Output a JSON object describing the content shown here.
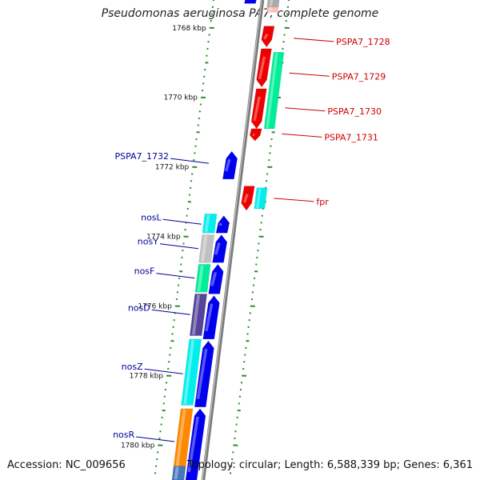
{
  "title": "Pseudomonas aeruginosa PA7, complete genome",
  "footer": {
    "accession": "Accession: NC_009656",
    "topology": "Topology: circular; Length: 6,588,339 bp; Genes: 6,361"
  },
  "colors": {
    "backbone": "#8a8a8a",
    "tick": "#2e8b2e",
    "forward_label": "#cc0000",
    "reverse_label": "#000099"
  },
  "genome_axis": {
    "unit": "kbp",
    "start_kbp": 1767.2,
    "end_kbp": 1781.0,
    "major_ticks": [
      {
        "kbp": 1768,
        "label": "1768 kbp"
      },
      {
        "kbp": 1770,
        "label": "1770 kbp"
      },
      {
        "kbp": 1772,
        "label": "1772 kbp"
      },
      {
        "kbp": 1774,
        "label": "1774 kbp"
      },
      {
        "kbp": 1776,
        "label": "1776 kbp"
      },
      {
        "kbp": 1778,
        "label": "1778 kbp"
      },
      {
        "kbp": 1780,
        "label": "1780 kbp"
      }
    ]
  },
  "forward_genes": [
    {
      "start": 1767.95,
      "end": 1768.55,
      "color": "#ee0000"
    },
    {
      "start": 1768.6,
      "end": 1769.7,
      "color": "#ee0000"
    },
    {
      "start": 1769.75,
      "end": 1770.9,
      "color": "#ee0000"
    },
    {
      "start": 1770.9,
      "end": 1771.25,
      "color": "#ee0000"
    },
    {
      "start": 1772.55,
      "end": 1773.25,
      "color": "#ee0000"
    }
  ],
  "forward_rna": [
    {
      "start": 1767.15,
      "end": 1767.55,
      "color": "#ffbbbb"
    },
    {
      "start": 1767.15,
      "end": 1767.4,
      "color": "#aaaaaa"
    }
  ],
  "forward_cds": [
    {
      "start": 1768.7,
      "end": 1770.9,
      "color": "#00ee99"
    },
    {
      "start": 1772.6,
      "end": 1773.2,
      "color": "#00eeee"
    }
  ],
  "reverse_genes": [
    {
      "start": 1767.0,
      "end": 1767.3,
      "color": "#0000ee"
    },
    {
      "start": 1771.55,
      "end": 1772.35,
      "color": "#0000ee"
    },
    {
      "start": 1773.4,
      "end": 1773.9,
      "color": "#0000ee"
    },
    {
      "start": 1773.95,
      "end": 1774.75,
      "color": "#0000ee"
    },
    {
      "start": 1774.8,
      "end": 1775.65,
      "color": "#0000ee"
    },
    {
      "start": 1775.7,
      "end": 1776.95,
      "color": "#0000ee"
    },
    {
      "start": 1777.0,
      "end": 1778.9,
      "color": "#0000ee"
    },
    {
      "start": 1778.95,
      "end": 1781.0,
      "color": "#0000ee"
    }
  ],
  "reverse_cds": [
    {
      "start": 1773.35,
      "end": 1773.9,
      "color": "#00eeee"
    },
    {
      "start": 1773.95,
      "end": 1774.75,
      "color": "#c0c0c0"
    },
    {
      "start": 1774.8,
      "end": 1775.6,
      "color": "#00ee99"
    },
    {
      "start": 1775.65,
      "end": 1776.85,
      "color": "#554499"
    },
    {
      "start": 1776.95,
      "end": 1778.85,
      "color": "#00eeee"
    },
    {
      "start": 1778.95,
      "end": 1781.0,
      "color": "#ff8800"
    },
    {
      "start": 1780.6,
      "end": 1781.0,
      "color": "#4477bb"
    }
  ],
  "forward_labels": [
    {
      "text": "PSPA7_1728",
      "kbp": 1768.3
    },
    {
      "text": "PSPA7_1729",
      "kbp": 1769.3
    },
    {
      "text": "PSPA7_1730",
      "kbp": 1770.3
    },
    {
      "text": "PSPA7_1731",
      "kbp": 1771.05
    },
    {
      "text": "fpr",
      "kbp": 1772.9
    }
  ],
  "reverse_labels": [
    {
      "text": "PSPA7_1732",
      "kbp": 1771.85
    },
    {
      "text": "nosL",
      "kbp": 1773.6
    },
    {
      "text": "nosY",
      "kbp": 1774.3
    },
    {
      "text": "nosF",
      "kbp": 1775.15
    },
    {
      "text": "nosD",
      "kbp": 1776.2
    },
    {
      "text": "nosZ",
      "kbp": 1777.9
    },
    {
      "text": "nosR",
      "kbp": 1779.85
    }
  ]
}
